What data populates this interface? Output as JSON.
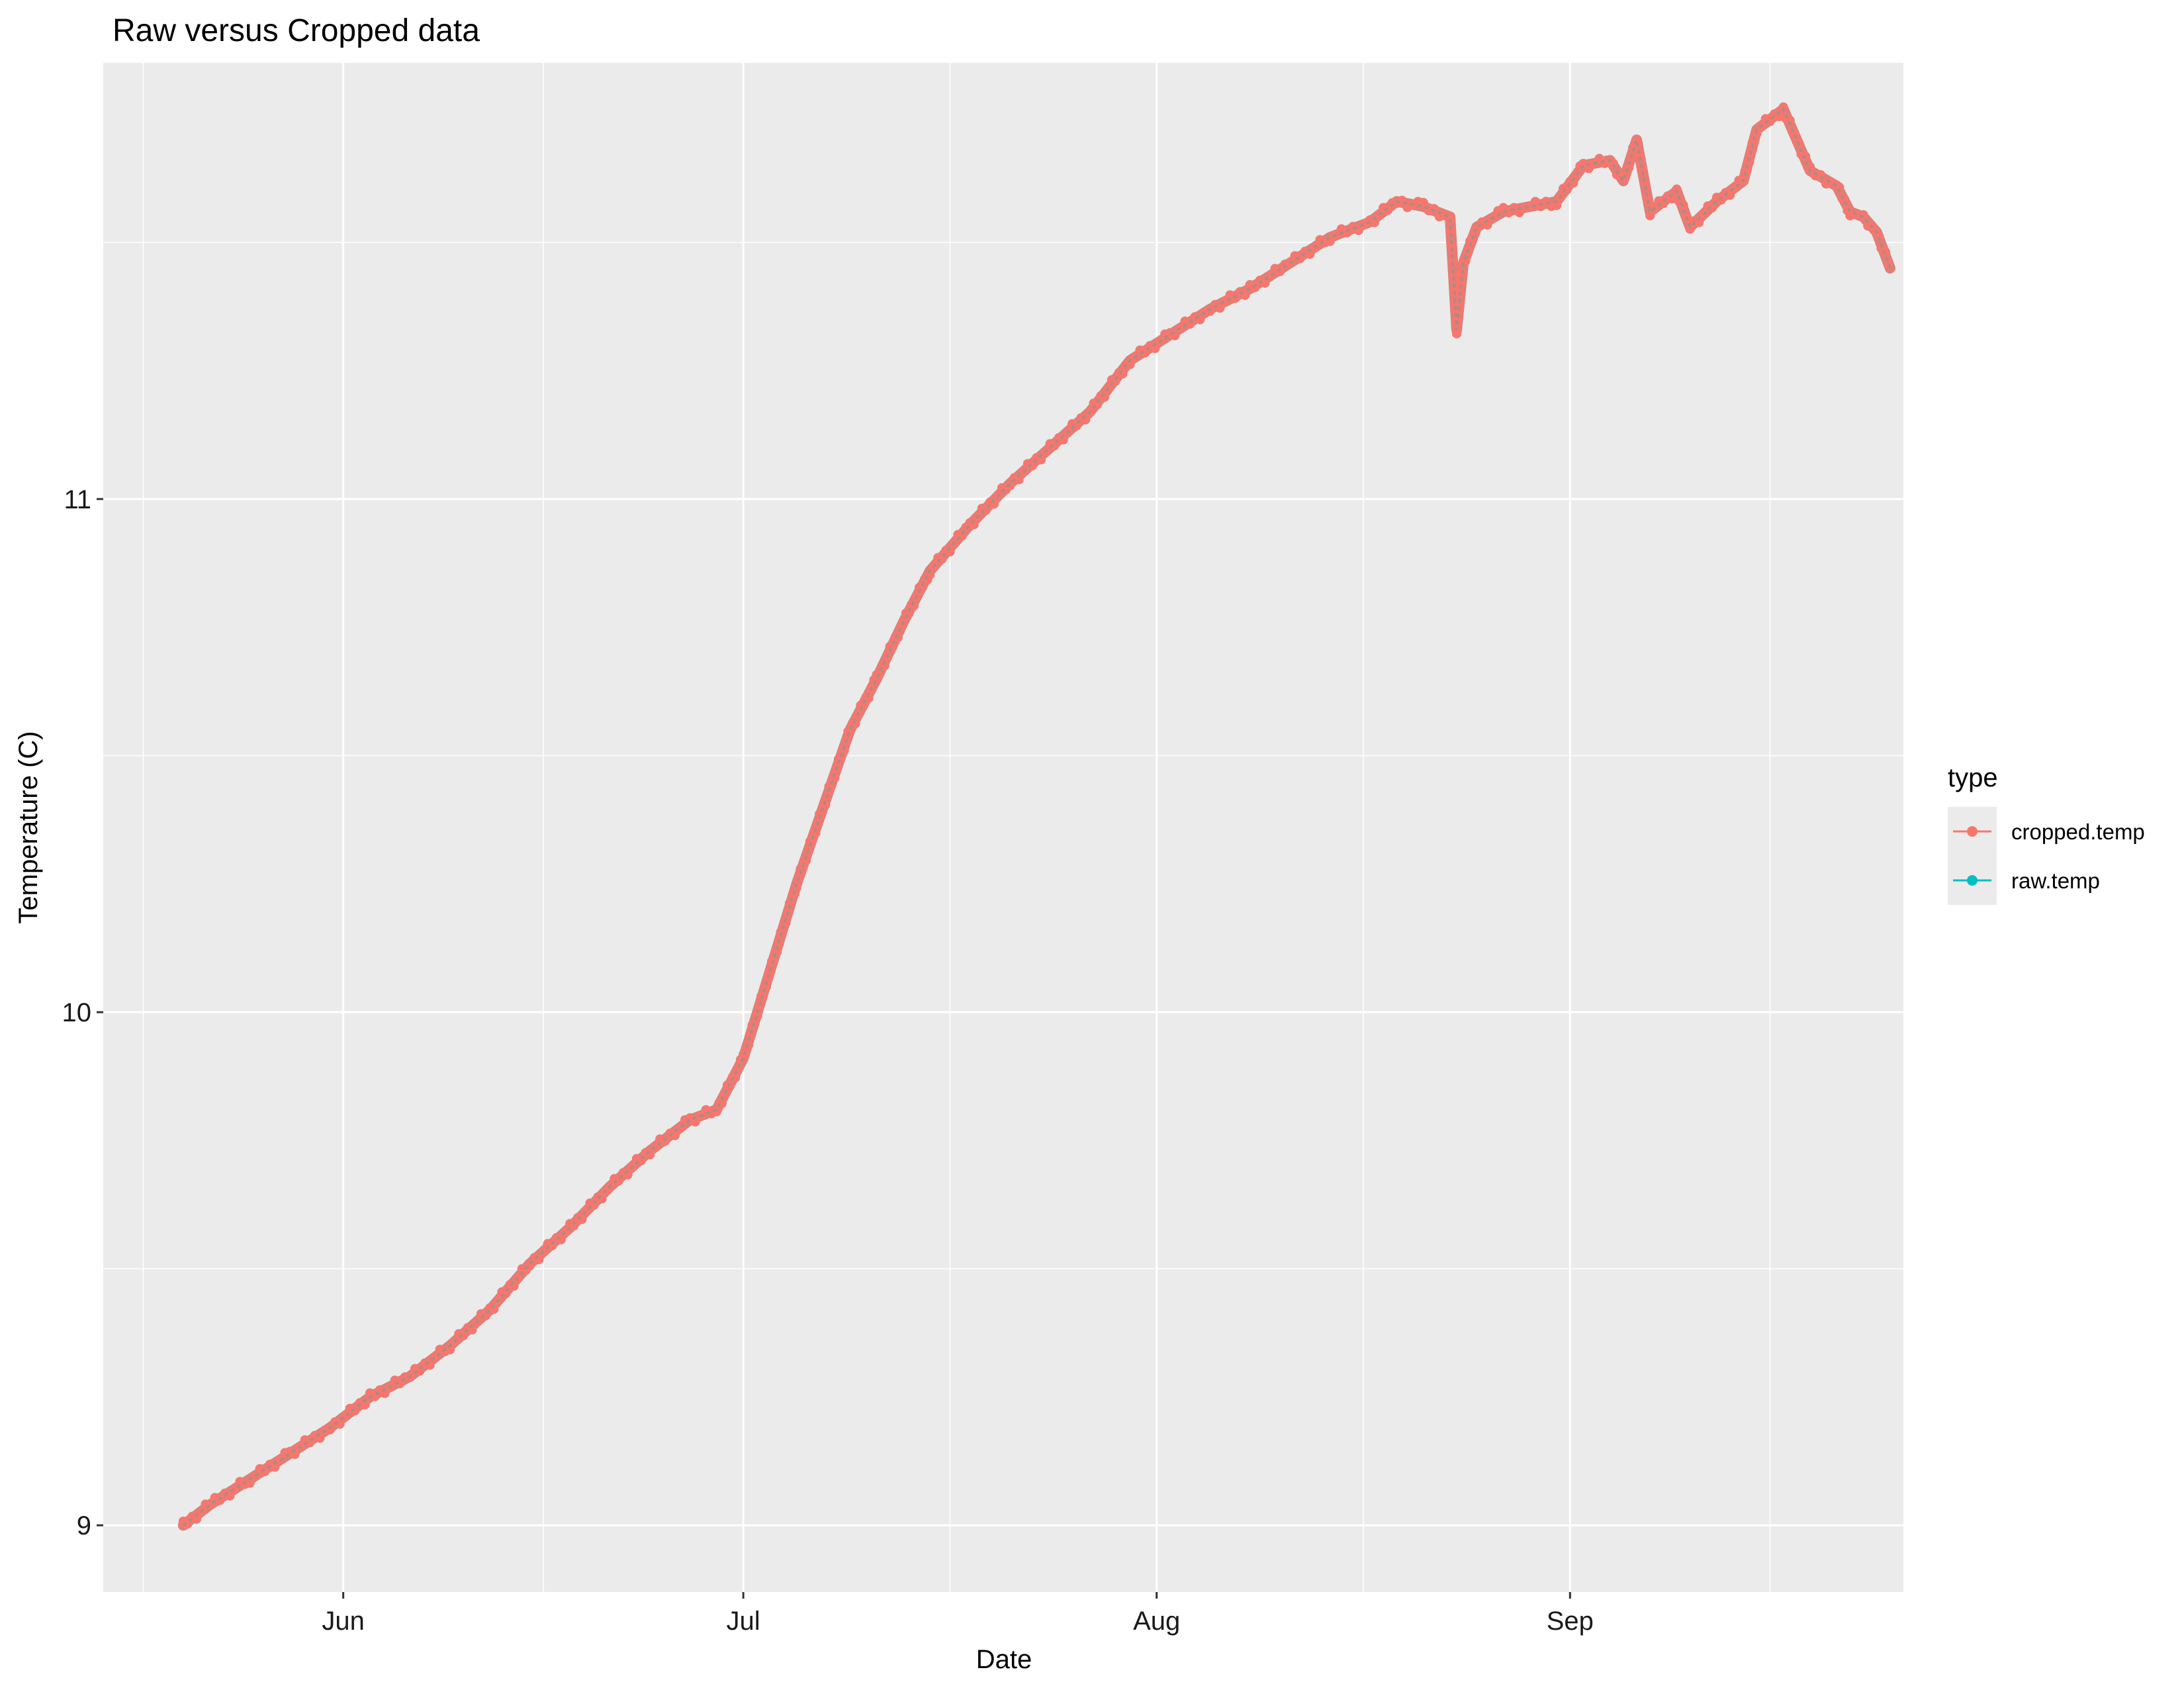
{
  "chart_data": {
    "type": "line",
    "title": "Raw versus Cropped data",
    "xlabel": "Date",
    "ylabel": "Temperature (C)",
    "x_ticks": [
      "2023-06-01",
      "2023-07-01",
      "2023-08-01",
      "2023-09-01"
    ],
    "x_tick_labels": [
      "Jun",
      "Jul",
      "Aug",
      "Sep"
    ],
    "xlim": [
      "2023-05-14",
      "2023-09-26"
    ],
    "y_ticks": [
      9,
      10,
      11
    ],
    "ylim": [
      8.87,
      11.85
    ],
    "grid": true,
    "legend_position": "right",
    "legend_title": "type",
    "series": [
      {
        "name": "cropped.temp",
        "color": "#F8766D",
        "points": [
          [
            "2023-05-20",
            9.0
          ],
          [
            "2023-05-22",
            9.04
          ],
          [
            "2023-05-25",
            9.09
          ],
          [
            "2023-05-28",
            9.14
          ],
          [
            "2023-05-31",
            9.19
          ],
          [
            "2023-06-03",
            9.25
          ],
          [
            "2023-06-06",
            9.29
          ],
          [
            "2023-06-09",
            9.35
          ],
          [
            "2023-06-12",
            9.42
          ],
          [
            "2023-06-15",
            9.51
          ],
          [
            "2023-06-18",
            9.58
          ],
          [
            "2023-06-21",
            9.66
          ],
          [
            "2023-06-24",
            9.73
          ],
          [
            "2023-06-27",
            9.79
          ],
          [
            "2023-06-29",
            9.81
          ],
          [
            "2023-07-01",
            9.91
          ],
          [
            "2023-07-03",
            10.08
          ],
          [
            "2023-07-05",
            10.25
          ],
          [
            "2023-07-07",
            10.4
          ],
          [
            "2023-07-09",
            10.55
          ],
          [
            "2023-07-11",
            10.65
          ],
          [
            "2023-07-13",
            10.76
          ],
          [
            "2023-07-15",
            10.86
          ],
          [
            "2023-07-18",
            10.95
          ],
          [
            "2023-07-21",
            11.03
          ],
          [
            "2023-07-24",
            11.1
          ],
          [
            "2023-07-27",
            11.17
          ],
          [
            "2023-07-30",
            11.27
          ],
          [
            "2023-08-02",
            11.32
          ],
          [
            "2023-08-05",
            11.37
          ],
          [
            "2023-08-08",
            11.41
          ],
          [
            "2023-08-11",
            11.46
          ],
          [
            "2023-08-14",
            11.51
          ],
          [
            "2023-08-17",
            11.54
          ],
          [
            "2023-08-19",
            11.58
          ],
          [
            "2023-08-21",
            11.57
          ],
          [
            "2023-08-23",
            11.55
          ],
          [
            "2023-08-23T12",
            11.33
          ],
          [
            "2023-08-24",
            11.46
          ],
          [
            "2023-08-25",
            11.53
          ],
          [
            "2023-08-27",
            11.56
          ],
          [
            "2023-08-29",
            11.57
          ],
          [
            "2023-08-31",
            11.58
          ],
          [
            "2023-09-02",
            11.65
          ],
          [
            "2023-09-04",
            11.66
          ],
          [
            "2023-09-05",
            11.62
          ],
          [
            "2023-09-06",
            11.7
          ],
          [
            "2023-09-07",
            11.56
          ],
          [
            "2023-09-09",
            11.6
          ],
          [
            "2023-09-10",
            11.53
          ],
          [
            "2023-09-12",
            11.58
          ],
          [
            "2023-09-14",
            11.62
          ],
          [
            "2023-09-15",
            11.72
          ],
          [
            "2023-09-17",
            11.76
          ],
          [
            "2023-09-18",
            11.7
          ],
          [
            "2023-09-19",
            11.64
          ],
          [
            "2023-09-21",
            11.61
          ],
          [
            "2023-09-22",
            11.56
          ],
          [
            "2023-09-23",
            11.55
          ],
          [
            "2023-09-24",
            11.52
          ],
          [
            "2023-09-25",
            11.45
          ]
        ]
      },
      {
        "name": "raw.temp",
        "color": "#00BFC4",
        "points": [
          [
            "2023-05-20",
            9.0
          ],
          [
            "2023-05-22",
            9.04
          ],
          [
            "2023-05-25",
            9.09
          ],
          [
            "2023-05-28",
            9.14
          ],
          [
            "2023-05-31",
            9.19
          ],
          [
            "2023-06-03",
            9.25
          ],
          [
            "2023-06-06",
            9.29
          ],
          [
            "2023-06-09",
            9.35
          ],
          [
            "2023-06-12",
            9.42
          ],
          [
            "2023-06-15",
            9.51
          ],
          [
            "2023-06-18",
            9.58
          ],
          [
            "2023-06-21",
            9.66
          ],
          [
            "2023-06-24",
            9.73
          ],
          [
            "2023-06-27",
            9.79
          ],
          [
            "2023-06-29",
            9.81
          ],
          [
            "2023-07-01",
            9.91
          ],
          [
            "2023-07-03",
            10.08
          ],
          [
            "2023-07-05",
            10.25
          ],
          [
            "2023-07-07",
            10.4
          ],
          [
            "2023-07-09",
            10.55
          ],
          [
            "2023-07-11",
            10.65
          ],
          [
            "2023-07-13",
            10.76
          ],
          [
            "2023-07-15",
            10.86
          ],
          [
            "2023-07-18",
            10.95
          ],
          [
            "2023-07-21",
            11.03
          ],
          [
            "2023-07-24",
            11.1
          ],
          [
            "2023-07-27",
            11.17
          ],
          [
            "2023-07-30",
            11.27
          ],
          [
            "2023-08-02",
            11.32
          ],
          [
            "2023-08-05",
            11.37
          ],
          [
            "2023-08-08",
            11.41
          ],
          [
            "2023-08-11",
            11.46
          ],
          [
            "2023-08-14",
            11.51
          ],
          [
            "2023-08-17",
            11.54
          ],
          [
            "2023-08-19",
            11.58
          ],
          [
            "2023-08-21",
            11.57
          ],
          [
            "2023-08-23",
            11.55
          ],
          [
            "2023-08-23T12",
            11.33
          ],
          [
            "2023-08-24",
            11.46
          ],
          [
            "2023-08-25",
            11.53
          ],
          [
            "2023-08-27",
            11.56
          ],
          [
            "2023-08-29",
            11.57
          ],
          [
            "2023-08-31",
            11.58
          ],
          [
            "2023-09-02",
            11.65
          ],
          [
            "2023-09-04",
            11.66
          ],
          [
            "2023-09-05",
            11.62
          ],
          [
            "2023-09-06",
            11.7
          ],
          [
            "2023-09-07",
            11.56
          ],
          [
            "2023-09-09",
            11.6
          ],
          [
            "2023-09-10",
            11.53
          ],
          [
            "2023-09-12",
            11.58
          ],
          [
            "2023-09-14",
            11.62
          ],
          [
            "2023-09-15",
            11.72
          ],
          [
            "2023-09-17",
            11.76
          ],
          [
            "2023-09-18",
            11.7
          ],
          [
            "2023-09-19",
            11.64
          ],
          [
            "2023-09-21",
            11.61
          ],
          [
            "2023-09-22",
            11.56
          ],
          [
            "2023-09-23",
            11.55
          ],
          [
            "2023-09-24",
            11.52
          ],
          [
            "2023-09-25",
            11.45
          ]
        ]
      }
    ]
  }
}
